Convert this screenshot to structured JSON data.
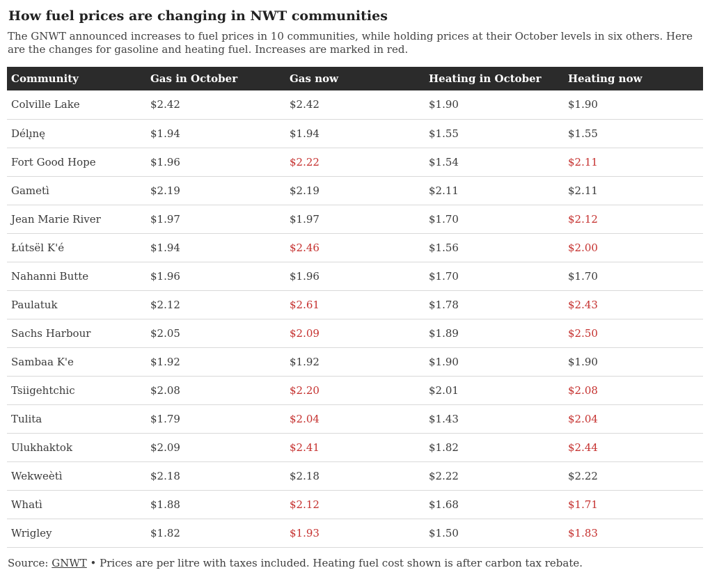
{
  "header": {
    "title": "How fuel prices are changing in NWT communities",
    "subtitle": "The GNWT announced increases to fuel prices in 10 communities, while holding prices at their October levels in six others. Here are the changes for gasoline and heating fuel. Increases are marked in red."
  },
  "footer": {
    "source_label": "Source: ",
    "source_link": "GNWT",
    "note_after": " • Prices are per litre with taxes included. Heating fuel cost shown is after carbon tax rebate."
  },
  "colors": {
    "increase_red": "#c5302e",
    "header_bg": "#2b2b2b",
    "header_text": "#ffffff"
  },
  "chart_data": {
    "type": "table",
    "title": "How fuel prices are changing in NWT communities",
    "columns": [
      "Community",
      "Gas in October",
      "Gas now",
      "Heating in October",
      "Heating now"
    ],
    "highlight_meaning": "red text marks a price increase",
    "rows": [
      {
        "cells": [
          "Colville Lake",
          "$2.42",
          "$2.42",
          "$1.90",
          "$1.90"
        ],
        "red": [
          false,
          false,
          false,
          false,
          false
        ]
      },
      {
        "cells": [
          "Délı̨nę",
          "$1.94",
          "$1.94",
          "$1.55",
          "$1.55"
        ],
        "red": [
          false,
          false,
          false,
          false,
          false
        ]
      },
      {
        "cells": [
          "Fort Good Hope",
          "$1.96",
          "$2.22",
          "$1.54",
          "$2.11"
        ],
        "red": [
          false,
          false,
          true,
          false,
          true
        ]
      },
      {
        "cells": [
          "Gametì",
          "$2.19",
          "$2.19",
          "$2.11",
          "$2.11"
        ],
        "red": [
          false,
          false,
          false,
          false,
          false
        ]
      },
      {
        "cells": [
          "Jean Marie River",
          "$1.97",
          "$1.97",
          "$1.70",
          "$2.12"
        ],
        "red": [
          false,
          false,
          false,
          false,
          true
        ]
      },
      {
        "cells": [
          "Łútsël K'é",
          "$1.94",
          "$2.46",
          "$1.56",
          "$2.00"
        ],
        "red": [
          false,
          false,
          true,
          false,
          true
        ]
      },
      {
        "cells": [
          "Nahanni Butte",
          "$1.96",
          "$1.96",
          "$1.70",
          "$1.70"
        ],
        "red": [
          false,
          false,
          false,
          false,
          false
        ]
      },
      {
        "cells": [
          "Paulatuk",
          "$2.12",
          "$2.61",
          "$1.78",
          "$2.43"
        ],
        "red": [
          false,
          false,
          true,
          false,
          true
        ]
      },
      {
        "cells": [
          "Sachs Harbour",
          "$2.05",
          "$2.09",
          "$1.89",
          "$2.50"
        ],
        "red": [
          false,
          false,
          true,
          false,
          true
        ]
      },
      {
        "cells": [
          "Sambaa K'e",
          "$1.92",
          "$1.92",
          "$1.90",
          "$1.90"
        ],
        "red": [
          false,
          false,
          false,
          false,
          false
        ]
      },
      {
        "cells": [
          "Tsiigehtchic",
          "$2.08",
          "$2.20",
          "$2.01",
          "$2.08"
        ],
        "red": [
          false,
          false,
          true,
          false,
          true
        ]
      },
      {
        "cells": [
          "Tulita",
          "$1.79",
          "$2.04",
          "$1.43",
          "$2.04"
        ],
        "red": [
          false,
          false,
          true,
          false,
          true
        ]
      },
      {
        "cells": [
          "Ulukhaktok",
          "$2.09",
          "$2.41",
          "$1.82",
          "$2.44"
        ],
        "red": [
          false,
          false,
          true,
          false,
          true
        ]
      },
      {
        "cells": [
          "Wekweètì",
          "$2.18",
          "$2.18",
          "$2.22",
          "$2.22"
        ],
        "red": [
          false,
          false,
          false,
          false,
          false
        ]
      },
      {
        "cells": [
          "Whatì",
          "$1.88",
          "$2.12",
          "$1.68",
          "$1.71"
        ],
        "red": [
          false,
          false,
          true,
          false,
          true
        ]
      },
      {
        "cells": [
          "Wrigley",
          "$1.82",
          "$1.93",
          "$1.50",
          "$1.83"
        ],
        "red": [
          false,
          false,
          true,
          false,
          true
        ]
      }
    ]
  }
}
